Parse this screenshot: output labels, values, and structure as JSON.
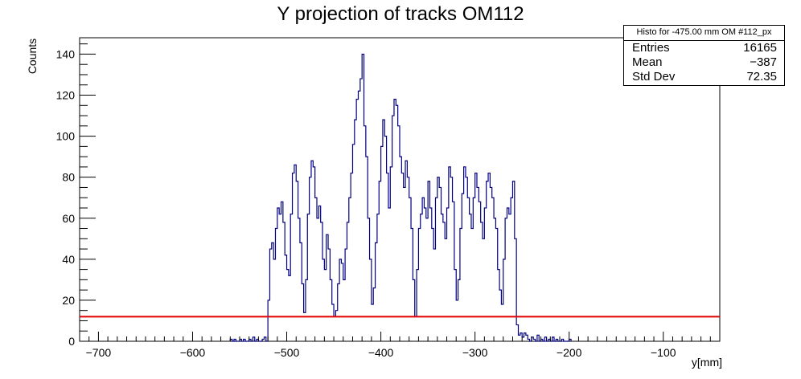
{
  "chart_data": {
    "type": "histogram",
    "title": "Y projection of tracks OM112",
    "xlabel": "y[mm]",
    "ylabel": "Counts",
    "xlim": [
      -720,
      -40
    ],
    "ylim": [
      0,
      148
    ],
    "x_ticks": [
      -700,
      -600,
      -500,
      -400,
      -300,
      -200,
      -100
    ],
    "x_tick_labels": [
      "−700",
      "−600",
      "−500",
      "−400",
      "−300",
      "−200",
      "−100"
    ],
    "y_ticks": [
      0,
      20,
      40,
      60,
      80,
      100,
      120,
      140
    ],
    "y_tick_labels": [
      "0",
      "20",
      "40",
      "60",
      "80",
      "100",
      "120",
      "140"
    ],
    "bin_width": 2,
    "hist_color": "#000080",
    "threshold": {
      "y": 12,
      "color": "#e00000"
    },
    "bins": [
      [
        -560,
        1
      ],
      [
        -556,
        1
      ],
      [
        -550,
        1
      ],
      [
        -546,
        1
      ],
      [
        -540,
        1
      ],
      [
        -536,
        2
      ],
      [
        -532,
        1
      ],
      [
        -526,
        1
      ],
      [
        -524,
        2
      ],
      [
        -520,
        20
      ],
      [
        -518,
        45
      ],
      [
        -516,
        48
      ],
      [
        -514,
        40
      ],
      [
        -512,
        55
      ],
      [
        -510,
        65
      ],
      [
        -508,
        62
      ],
      [
        -506,
        68
      ],
      [
        -504,
        58
      ],
      [
        -502,
        42
      ],
      [
        -500,
        35
      ],
      [
        -498,
        32
      ],
      [
        -496,
        62
      ],
      [
        -494,
        82
      ],
      [
        -492,
        86
      ],
      [
        -490,
        78
      ],
      [
        -488,
        60
      ],
      [
        -486,
        48
      ],
      [
        -484,
        28
      ],
      [
        -482,
        14
      ],
      [
        -480,
        30
      ],
      [
        -478,
        62
      ],
      [
        -476,
        80
      ],
      [
        -474,
        88
      ],
      [
        -472,
        85
      ],
      [
        -470,
        70
      ],
      [
        -468,
        60
      ],
      [
        -466,
        66
      ],
      [
        -464,
        58
      ],
      [
        -462,
        40
      ],
      [
        -460,
        35
      ],
      [
        -458,
        52
      ],
      [
        -456,
        45
      ],
      [
        -454,
        30
      ],
      [
        -452,
        18
      ],
      [
        -450,
        12
      ],
      [
        -448,
        15
      ],
      [
        -446,
        28
      ],
      [
        -444,
        40
      ],
      [
        -442,
        38
      ],
      [
        -440,
        30
      ],
      [
        -438,
        45
      ],
      [
        -436,
        58
      ],
      [
        -434,
        70
      ],
      [
        -432,
        82
      ],
      [
        -430,
        96
      ],
      [
        -428,
        108
      ],
      [
        -426,
        118
      ],
      [
        -424,
        122
      ],
      [
        -422,
        128
      ],
      [
        -420,
        140
      ],
      [
        -418,
        105
      ],
      [
        -416,
        90
      ],
      [
        -414,
        60
      ],
      [
        -412,
        40
      ],
      [
        -410,
        18
      ],
      [
        -408,
        26
      ],
      [
        -406,
        48
      ],
      [
        -404,
        62
      ],
      [
        -402,
        78
      ],
      [
        -400,
        95
      ],
      [
        -398,
        108
      ],
      [
        -396,
        100
      ],
      [
        -394,
        82
      ],
      [
        -392,
        65
      ],
      [
        -390,
        85
      ],
      [
        -388,
        110
      ],
      [
        -386,
        118
      ],
      [
        -384,
        115
      ],
      [
        -382,
        105
      ],
      [
        -380,
        90
      ],
      [
        -378,
        82
      ],
      [
        -376,
        75
      ],
      [
        -374,
        88
      ],
      [
        -372,
        80
      ],
      [
        -370,
        70
      ],
      [
        -368,
        55
      ],
      [
        -366,
        30
      ],
      [
        -364,
        12
      ],
      [
        -362,
        35
      ],
      [
        -360,
        55
      ],
      [
        -358,
        62
      ],
      [
        -356,
        70
      ],
      [
        -354,
        65
      ],
      [
        -352,
        60
      ],
      [
        -350,
        78
      ],
      [
        -348,
        65
      ],
      [
        -346,
        55
      ],
      [
        -344,
        45
      ],
      [
        -342,
        70
      ],
      [
        -340,
        80
      ],
      [
        -338,
        75
      ],
      [
        -336,
        62
      ],
      [
        -334,
        58
      ],
      [
        -332,
        50
      ],
      [
        -330,
        65
      ],
      [
        -328,
        85
      ],
      [
        -326,
        80
      ],
      [
        -324,
        68
      ],
      [
        -322,
        35
      ],
      [
        -320,
        20
      ],
      [
        -318,
        30
      ],
      [
        -316,
        55
      ],
      [
        -314,
        72
      ],
      [
        -312,
        85
      ],
      [
        -310,
        80
      ],
      [
        -308,
        70
      ],
      [
        -306,
        62
      ],
      [
        -304,
        55
      ],
      [
        -302,
        70
      ],
      [
        -300,
        82
      ],
      [
        -298,
        75
      ],
      [
        -296,
        68
      ],
      [
        -294,
        58
      ],
      [
        -292,
        50
      ],
      [
        -290,
        65
      ],
      [
        -288,
        78
      ],
      [
        -286,
        82
      ],
      [
        -284,
        75
      ],
      [
        -282,
        70
      ],
      [
        -280,
        60
      ],
      [
        -278,
        55
      ],
      [
        -276,
        35
      ],
      [
        -274,
        25
      ],
      [
        -272,
        18
      ],
      [
        -270,
        40
      ],
      [
        -268,
        60
      ],
      [
        -266,
        65
      ],
      [
        -264,
        62
      ],
      [
        -262,
        70
      ],
      [
        -260,
        78
      ],
      [
        -258,
        50
      ],
      [
        -256,
        8
      ],
      [
        -254,
        3
      ],
      [
        -252,
        4
      ],
      [
        -250,
        2
      ],
      [
        -248,
        4
      ],
      [
        -246,
        3
      ],
      [
        -244,
        1
      ],
      [
        -240,
        2
      ],
      [
        -238,
        1
      ],
      [
        -234,
        3
      ],
      [
        -230,
        1
      ],
      [
        -226,
        2
      ],
      [
        -222,
        1
      ],
      [
        -218,
        2
      ],
      [
        -214,
        1
      ],
      [
        -208,
        1
      ],
      [
        -200,
        1
      ]
    ]
  },
  "stats_box": {
    "header": "Histo for -475.00 mm OM #112_px",
    "rows": [
      {
        "label": "Entries",
        "value": "16165"
      },
      {
        "label": "Mean",
        "value": "−387"
      },
      {
        "label": "Std Dev",
        "value": "72.35"
      }
    ]
  }
}
